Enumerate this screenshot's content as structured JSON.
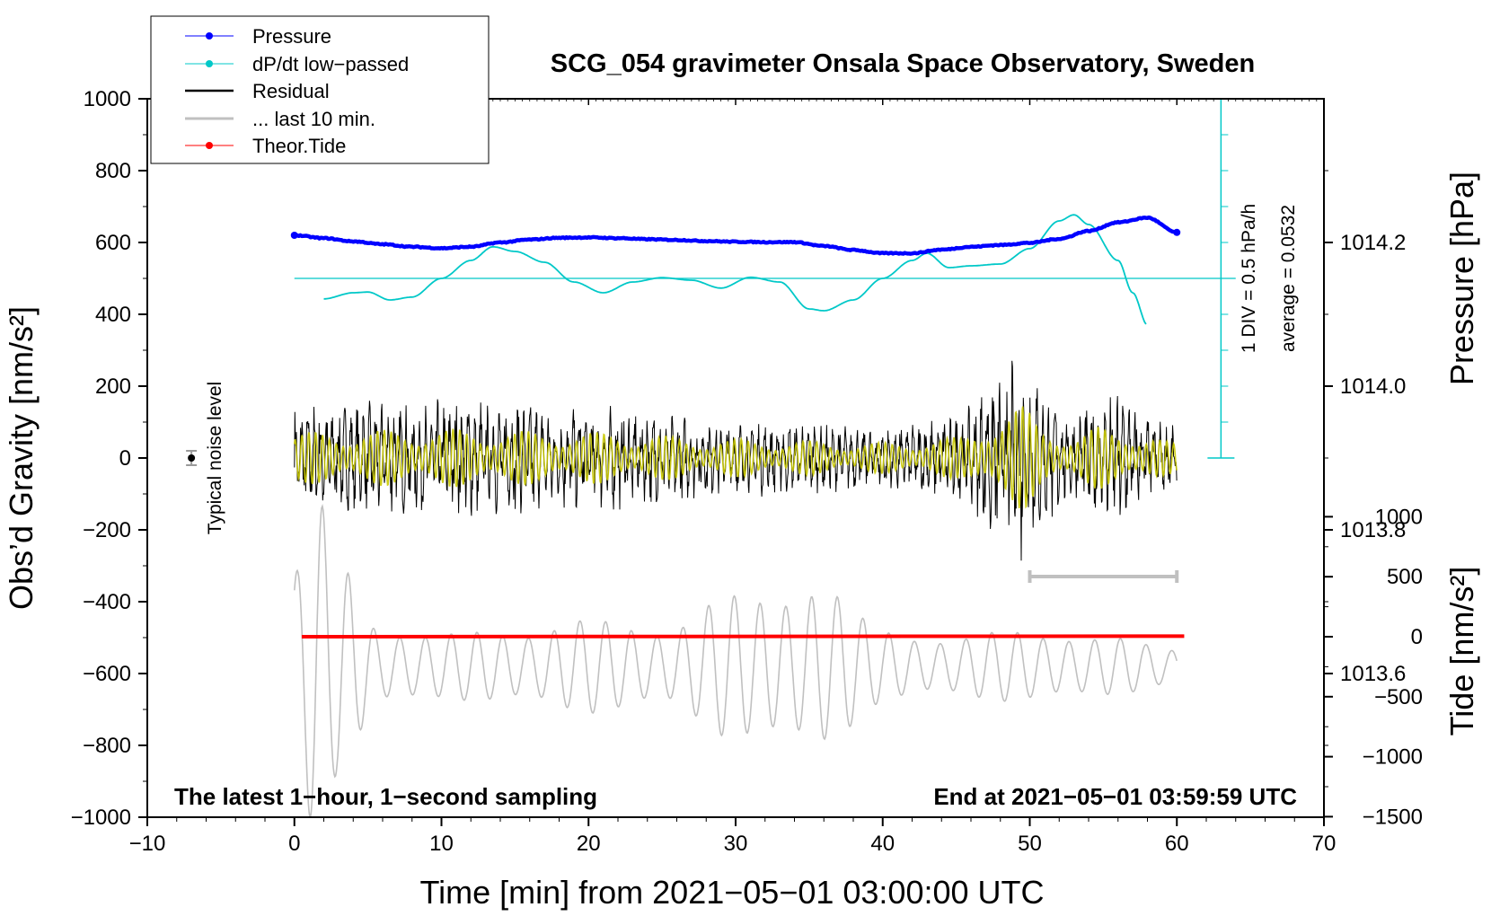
{
  "chart_data": {
    "type": "line",
    "title": "SCG_054 gravimeter Onsala Space Observatory, Sweden",
    "xlabel": "Time [min] from 2021−05−01 03:00:00 UTC",
    "ylabel_left": "Obs’d Gravity [nm/s²]",
    "ylabel_right_top": "Pressure [hPa]",
    "ylabel_right_bottom": "Tide [nm/s²]",
    "xlim": [
      -10,
      70
    ],
    "ylim_left": [
      -1000,
      1000
    ],
    "xticks": [
      "−10",
      "0",
      "10",
      "20",
      "30",
      "40",
      "50",
      "60",
      "70"
    ],
    "yticks_left": [
      "1000",
      "800",
      "600",
      "400",
      "200",
      "0",
      "−200",
      "−400",
      "−600",
      "−800",
      "−1000"
    ],
    "yticks_pressure": [
      "1014.2",
      "1014.0",
      "1013.8",
      "1013.6"
    ],
    "yticks_tide": [
      "1000",
      "500",
      "0",
      "−500",
      "−1000",
      "−1500"
    ],
    "pressure_range_hpa": [
      1013.4,
      1014.4
    ],
    "tide_range": [
      -1500,
      1500
    ],
    "legend": [
      {
        "label": "Pressure",
        "color": "#0000ff",
        "marker": true
      },
      {
        "label": "dP/dt low−passed",
        "color": "#00c8c8",
        "marker": true
      },
      {
        "label": "Residual",
        "color": "#000000",
        "marker": false
      },
      {
        "label": "... last 10 min.",
        "color": "#c0c0c0",
        "marker": false
      },
      {
        "label": "Theor.Tide",
        "color": "#ff0000",
        "marker": true
      }
    ],
    "annotations": {
      "bottom_left": "The latest 1−hour, 1−second sampling",
      "bottom_right": "End at 2021−05−01 03:59:59 UTC",
      "div_label": "1 DIV = 0.5 hPa/h",
      "average_label": "average = 0.0532",
      "noise_label": "Typical noise level"
    },
    "noise_bar": {
      "x": -7,
      "y": 0,
      "half_range": 20
    },
    "last10_bar": {
      "x_start": 50,
      "x_end": 60,
      "y": -330
    },
    "dpdt_baseline_y": 500,
    "series": [
      {
        "name": "Pressure",
        "color": "#0000ff",
        "x": [
          0,
          2,
          4,
          6,
          8,
          10,
          12,
          14,
          16,
          18,
          20,
          22,
          24,
          26,
          28,
          30,
          32,
          34,
          36,
          38,
          40,
          42,
          44,
          46,
          48,
          50,
          52,
          54,
          56,
          58,
          60
        ],
        "y": [
          620,
          612,
          603,
          595,
          588,
          584,
          588,
          600,
          608,
          613,
          614,
          612,
          609,
          607,
          604,
          602,
          601,
          601,
          590,
          579,
          570,
          570,
          580,
          588,
          593,
          599,
          610,
          632,
          656,
          669,
          628
        ]
      },
      {
        "name": "dP/dt low-passed",
        "color": "#00c8c8",
        "x": [
          2,
          4,
          5,
          6.5,
          8,
          10,
          12,
          13.5,
          15,
          17,
          19,
          21,
          23,
          25,
          27,
          29,
          31,
          33,
          35,
          36,
          38,
          40,
          42,
          43,
          44.5,
          46,
          48,
          50,
          52,
          53,
          54,
          56,
          57,
          58
        ],
        "y": [
          443,
          460,
          462,
          440,
          448,
          500,
          550,
          588,
          575,
          545,
          490,
          460,
          490,
          502,
          495,
          473,
          503,
          490,
          415,
          410,
          440,
          500,
          550,
          570,
          530,
          535,
          540,
          583,
          660,
          677,
          650,
          550,
          460,
          370
        ]
      },
      {
        "name": "Residual",
        "color": "#000000",
        "x_range": [
          0,
          60
        ],
        "envelope": {
          "x": [
            0,
            10,
            20,
            30,
            40,
            45,
            48,
            49.5,
            51,
            53,
            55,
            56,
            58,
            60
          ],
          "y": [
            150,
            170,
            150,
            110,
            90,
            120,
            250,
            300,
            200,
            120,
            190,
            190,
            120,
            90
          ]
        }
      },
      {
        "name": "Residual low-pass (yellow)",
        "color": "#c8c800",
        "x_range": [
          0,
          60
        ]
      },
      {
        "name": "... last 10 min.",
        "color": "#c0c0c0",
        "x_range": [
          0,
          60
        ],
        "center": -580,
        "envelope": {
          "x": [
            0,
            1.5,
            3,
            6,
            10,
            15,
            20,
            25,
            30,
            35,
            40,
            45,
            50,
            55,
            60
          ],
          "y": [
            300,
            480,
            300,
            120,
            90,
            110,
            130,
            120,
            200,
            250,
            110,
            80,
            110,
            80,
            60
          ]
        }
      },
      {
        "name": "Theor.Tide",
        "color": "#ff0000",
        "x": [
          0.5,
          60.5
        ],
        "tide": [
          0,
          5
        ]
      }
    ]
  }
}
